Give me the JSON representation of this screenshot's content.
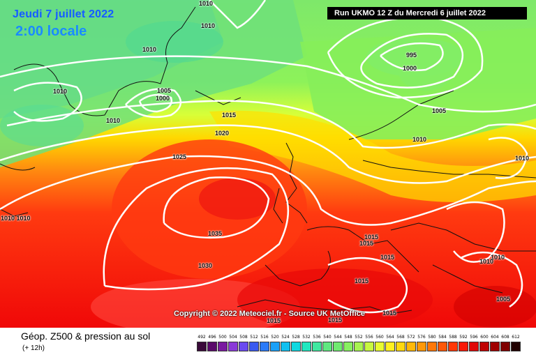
{
  "header": {
    "date": "Jeudi 7 juillet 2022",
    "local_time": "2:00 locale",
    "run": "Run UKMO 12 Z du Mercredi 6 juillet 2022"
  },
  "map": {
    "copyright": "Copyright © 2022 Meteociel.fr - Source UK MetOffice",
    "isobar_labels": [
      "1010",
      "1010",
      "1010",
      "1010",
      "1005",
      "1000",
      "1010",
      "1015",
      "1020",
      "1025",
      "1035",
      "1030",
      "1010 1010",
      "995",
      "1000",
      "1005",
      "1010",
      "1010",
      "1015",
      "1015",
      "1015",
      "1010",
      "1010",
      "1015",
      "1005",
      "1015",
      "1015",
      "1015"
    ]
  },
  "footer": {
    "title": "Géop. Z500 & pression au sol",
    "offset": "(+ 12h)"
  },
  "scale": {
    "labels": [
      "492",
      "496",
      "500",
      "504",
      "508",
      "512",
      "516",
      "520",
      "524",
      "528",
      "532",
      "536",
      "540",
      "544",
      "548",
      "552",
      "556",
      "560",
      "564",
      "568",
      "572",
      "576",
      "580",
      "584",
      "588",
      "592",
      "596",
      "600",
      "604",
      "608",
      "612"
    ],
    "colors": [
      "#3a0a3a",
      "#5a0a6a",
      "#7a1aa0",
      "#8a3ad8",
      "#6a4af0",
      "#3a5af0",
      "#2a7af8",
      "#1aa0f8",
      "#10c0f0",
      "#10d8e0",
      "#20e8c0",
      "#40e8a0",
      "#60e880",
      "#70ea70",
      "#88f060",
      "#a8f450",
      "#c8f840",
      "#e8fc30",
      "#fff020",
      "#ffd810",
      "#ffb808",
      "#ff9808",
      "#ff7808",
      "#ff5808",
      "#ff3808",
      "#f81808",
      "#e00808",
      "#c00000",
      "#a00000",
      "#800000",
      "#200000"
    ]
  }
}
